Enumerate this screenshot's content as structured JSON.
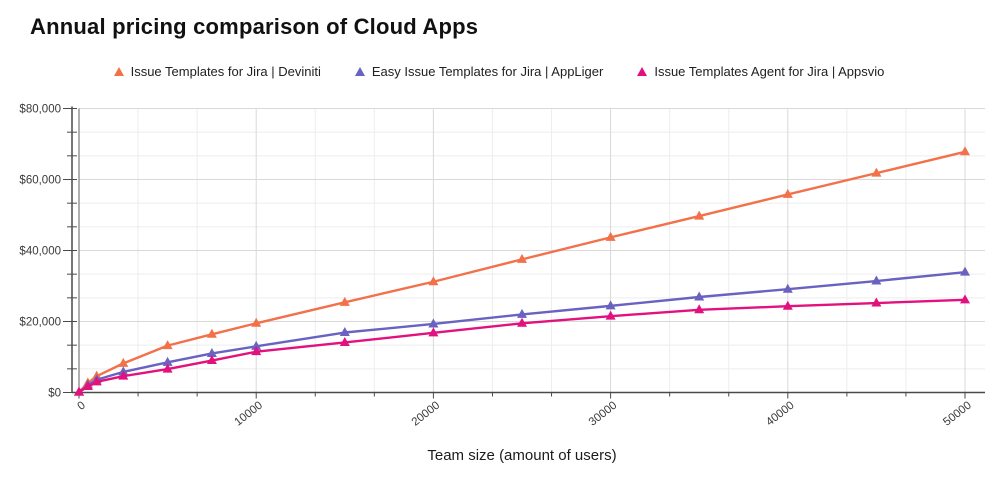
{
  "title": "Annual pricing comparison of Cloud Apps",
  "chart_data": {
    "type": "line",
    "title": "Annual pricing comparison of Cloud Apps",
    "xlabel": "Team size (amount of users)",
    "ylabel": "",
    "x": [
      1,
      500,
      1000,
      2500,
      5000,
      7500,
      10000,
      15000,
      20000,
      25000,
      30000,
      35000,
      40000,
      45000,
      50000
    ],
    "series": [
      {
        "name": "Issue Templates for Jira | Deviniti",
        "color": "#F2714A",
        "marker": "triangle-up",
        "values": [
          100,
          2700,
          4600,
          8200,
          13200,
          16400,
          19500,
          25400,
          31200,
          37500,
          43700,
          49700,
          55800,
          61800,
          67800
        ]
      },
      {
        "name": "Easy Issue Templates for Jira | AppLiger",
        "color": "#6A62C1",
        "marker": "triangle-up",
        "values": [
          100,
          2100,
          3600,
          5800,
          8500,
          11000,
          13000,
          16900,
          19300,
          22000,
          24400,
          26900,
          29100,
          31400,
          33900
        ]
      },
      {
        "name": "Issue Templates Agent for Jira | Appsvio",
        "color": "#E2117E",
        "marker": "triangle-up",
        "values": [
          100,
          1700,
          3000,
          4600,
          6600,
          9000,
          11500,
          14100,
          16800,
          19500,
          21500,
          23300,
          24300,
          25200,
          26100
        ]
      }
    ],
    "x_ticks": {
      "values": [
        0,
        10000,
        20000,
        30000,
        40000,
        50000
      ],
      "labels": [
        "0",
        "10000",
        "20000",
        "30000",
        "40000",
        "50000"
      ]
    },
    "y_ticks": {
      "values": [
        0,
        20000,
        40000,
        60000,
        80000
      ],
      "labels": [
        "$0",
        "$20,000",
        "$40,000",
        "$60,000",
        "$80,000"
      ]
    },
    "xlim": [
      0,
      51100
    ],
    "ylim": [
      0,
      80000
    ],
    "grid": "on",
    "minor_divisions_per_major": 3,
    "legend_position": "top"
  },
  "style": {
    "grid_major": "#d9d9d9",
    "grid_minor": "#ededed",
    "axis_line": "#4a4a4a",
    "zero_gridline": "#7a7a7a",
    "tick_text": "#3a3a3a",
    "title_text": "#111111",
    "legend_text": "#212121"
  }
}
